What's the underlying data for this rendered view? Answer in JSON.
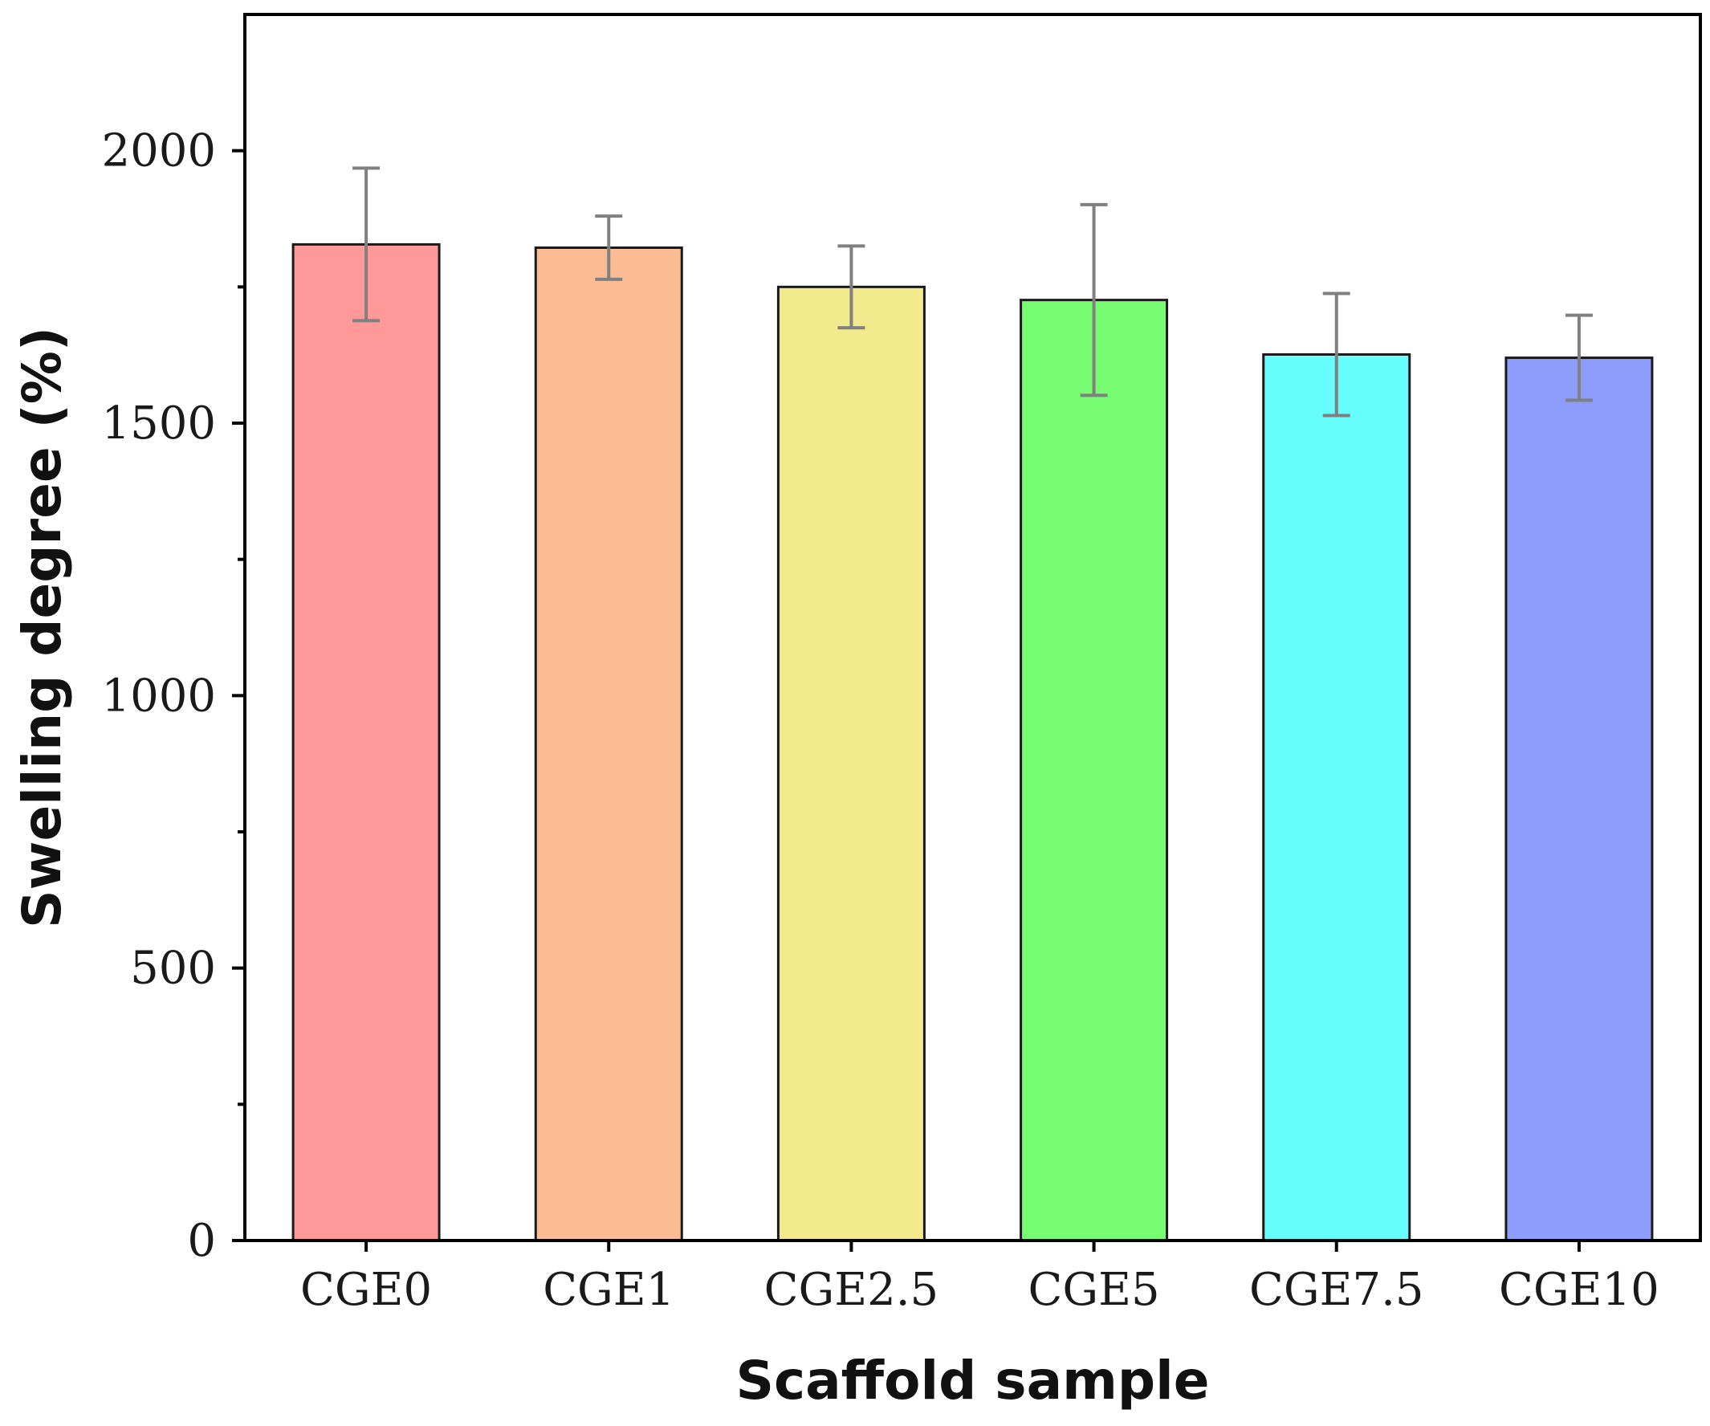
{
  "chart_data": {
    "type": "bar",
    "title": "",
    "xlabel": "Scaffold sample",
    "ylabel": "Swelling degree (%)",
    "categories": [
      "CGE0",
      "CGE1",
      "CGE2.5",
      "CGE5",
      "CGE7.5",
      "CGE10"
    ],
    "values": [
      1828,
      1822,
      1750,
      1726,
      1626,
      1620
    ],
    "errors": [
      140,
      58,
      75,
      175,
      112,
      78
    ],
    "colors": [
      "#ff9999",
      "#fbbc94",
      "#f3ea8e",
      "#77fd72",
      "#66fefd",
      "#8e9cfb"
    ],
    "error_color": "#808080",
    "ylim": [
      0,
      2250
    ],
    "yticks": [
      0,
      500,
      1000,
      1500,
      2000
    ],
    "yticks_minor": [
      250,
      750,
      1250,
      1750
    ],
    "grid": false
  }
}
